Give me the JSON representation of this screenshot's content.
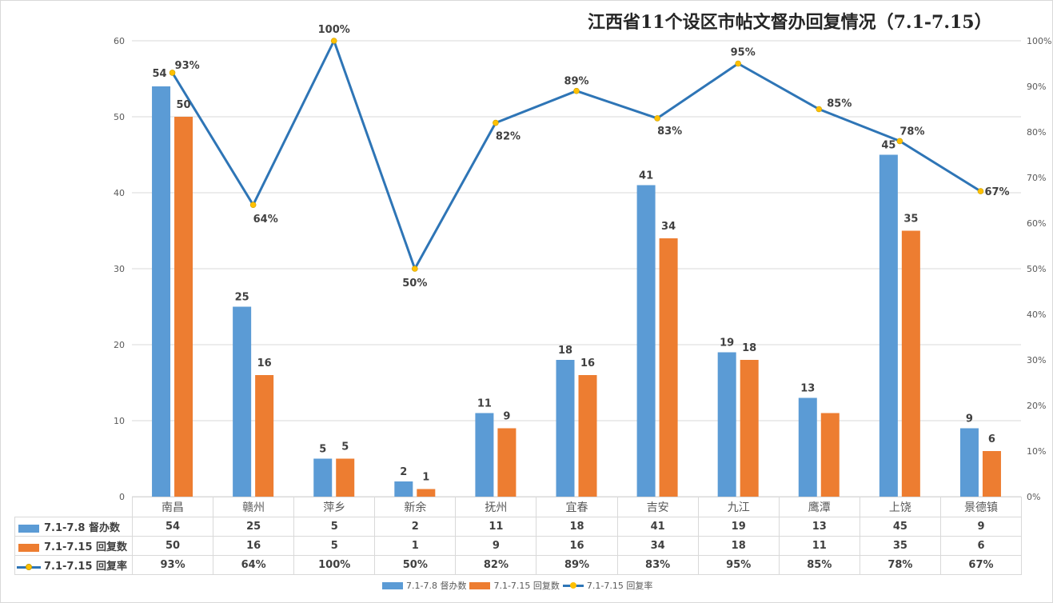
{
  "title": "江西省11个设区市帖文督办回复情况（7.1-7.15）",
  "colors": {
    "series_blue": "#5b9bd5",
    "series_orange": "#ed7d31",
    "line_blue": "#2e75b6",
    "marker_yellow": "#ffc000",
    "gridline": "#d9d9d9",
    "axis_text": "#595959",
    "label_text": "#404040"
  },
  "left_axis": {
    "ticks": [
      "0",
      "10",
      "20",
      "30",
      "40",
      "50",
      "60"
    ]
  },
  "right_axis": {
    "ticks": [
      "0%",
      "10%",
      "20%",
      "30%",
      "40%",
      "50%",
      "60%",
      "70%",
      "80%",
      "90%",
      "100%"
    ]
  },
  "table": {
    "categories": [
      "南昌",
      "赣州",
      "萍乡",
      "新余",
      "抚州",
      "宜春",
      "吉安",
      "九江",
      "鹰潭",
      "上饶",
      "景德镇"
    ],
    "rows": [
      {
        "label": "7.1-7.8 督办数",
        "key": "bar-blue",
        "values": [
          "54",
          "25",
          "5",
          "2",
          "11",
          "18",
          "41",
          "19",
          "13",
          "45",
          "9"
        ]
      },
      {
        "label": "7.1-7.15 回复数",
        "key": "bar-orange",
        "values": [
          "50",
          "16",
          "5",
          "1",
          "9",
          "16",
          "34",
          "18",
          "11",
          "35",
          "6"
        ]
      },
      {
        "label": "7.1-7.15 回复率",
        "key": "line",
        "values": [
          "93%",
          "64%",
          "100%",
          "50%",
          "82%",
          "89%",
          "83%",
          "95%",
          "85%",
          "78%",
          "67%"
        ]
      }
    ]
  },
  "legend": {
    "items": [
      "7.1-7.8 督办数",
      "7.1-7.15 回复数",
      "7.1-7.15 回复率"
    ]
  },
  "chart_data": {
    "type": "bar",
    "title": "江西省11个设区市帖文督办回复情况（7.1-7.15）",
    "xlabel": "",
    "ylabel": "",
    "categories": [
      "南昌",
      "赣州",
      "萍乡",
      "新余",
      "抚州",
      "宜春",
      "吉安",
      "九江",
      "鹰潭",
      "上饶",
      "景德镇"
    ],
    "series": [
      {
        "name": "7.1-7.8 督办数",
        "type": "bar",
        "axis": "left",
        "color": "#5b9bd5",
        "values": [
          54,
          25,
          5,
          2,
          11,
          18,
          41,
          19,
          13,
          45,
          9
        ]
      },
      {
        "name": "7.1-7.15 回复数",
        "type": "bar",
        "axis": "left",
        "color": "#ed7d31",
        "values": [
          50,
          16,
          5,
          1,
          9,
          16,
          34,
          18,
          11,
          35,
          6
        ]
      },
      {
        "name": "7.1-7.15 回复率",
        "type": "line",
        "axis": "right",
        "color": "#2e75b6",
        "marker_color": "#ffc000",
        "values": [
          0.93,
          0.64,
          1.0,
          0.5,
          0.82,
          0.89,
          0.83,
          0.95,
          0.85,
          0.78,
          0.67
        ],
        "labels": [
          "93%",
          "64%",
          "100%",
          "50%",
          "82%",
          "89%",
          "83%",
          "95%",
          "85%",
          "78%",
          "67%"
        ]
      }
    ],
    "ylim": [
      0,
      60
    ],
    "y2lim": [
      0,
      1
    ],
    "yticks": [
      0,
      10,
      20,
      30,
      40,
      50,
      60
    ],
    "y2ticks": [
      "0%",
      "10%",
      "20%",
      "30%",
      "40%",
      "50%",
      "60%",
      "70%",
      "80%",
      "90%",
      "100%"
    ],
    "grid": true,
    "legend_position": "bottom",
    "data_table": true,
    "bar_labels_shown": {
      "7.1-7.8 督办数": [
        true,
        true,
        true,
        true,
        true,
        true,
        true,
        true,
        true,
        true,
        true
      ],
      "7.1-7.15 回复数": [
        true,
        true,
        true,
        true,
        true,
        true,
        true,
        true,
        false,
        true,
        true
      ]
    }
  }
}
